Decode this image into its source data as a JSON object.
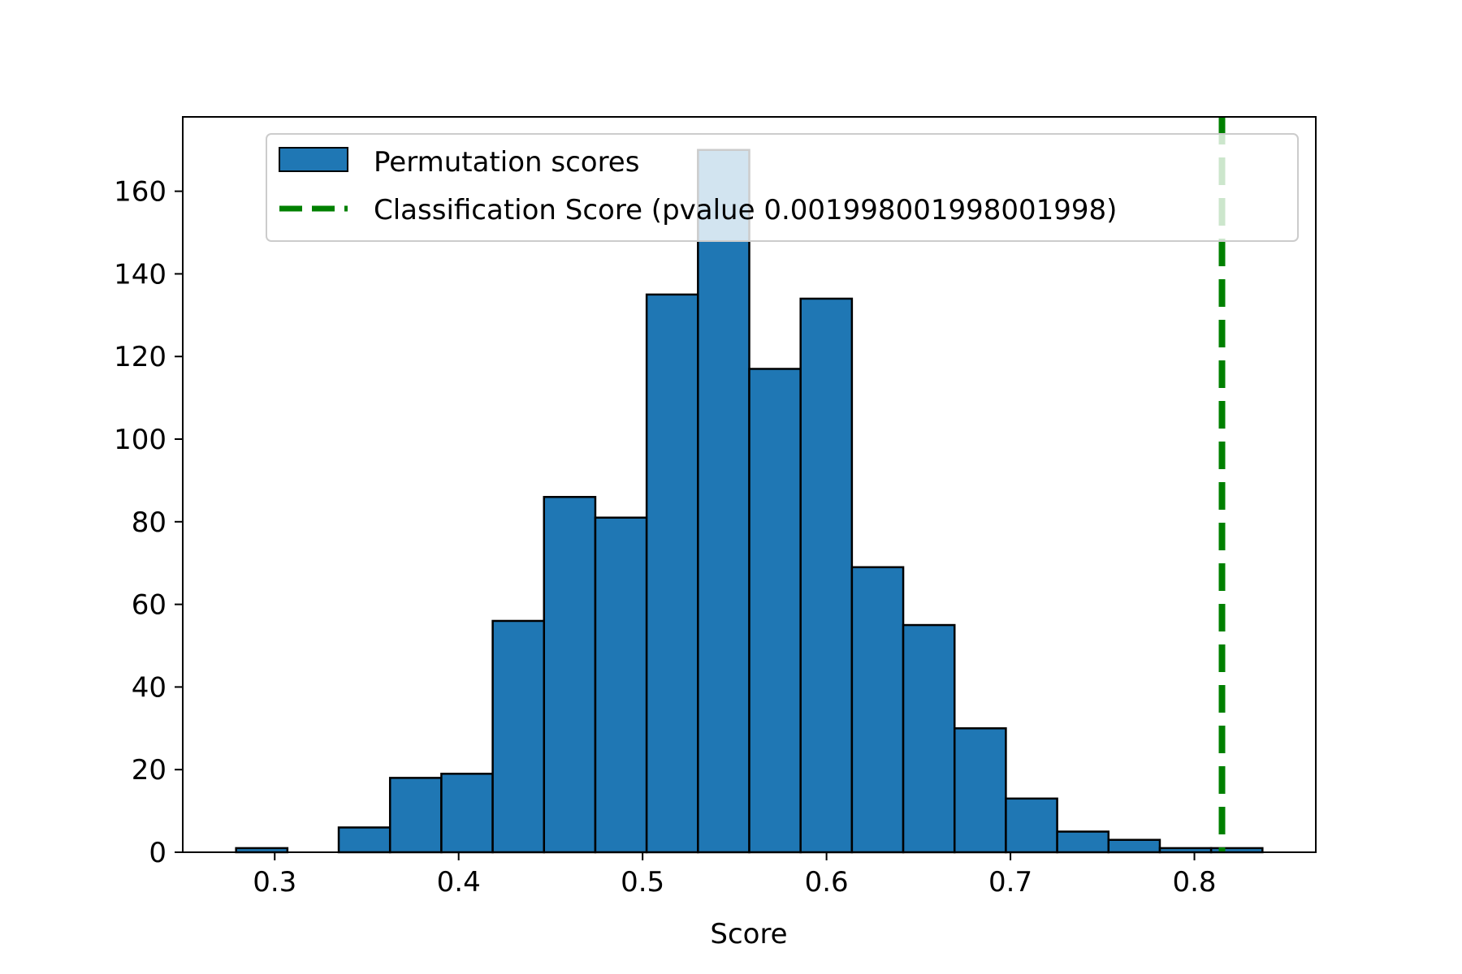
{
  "chart_data": {
    "type": "bar",
    "subtype": "histogram",
    "title": "",
    "xlabel": "Score",
    "ylabel": "",
    "xlim": [
      0.25,
      0.866
    ],
    "ylim": [
      0,
      178
    ],
    "bin_edges": [
      0.279,
      0.3069,
      0.3348,
      0.3627,
      0.3906,
      0.4185,
      0.4464,
      0.4743,
      0.5022,
      0.5301,
      0.558,
      0.5859,
      0.6138,
      0.6417,
      0.6696,
      0.6975,
      0.7254,
      0.7533,
      0.7812,
      0.8091,
      0.837
    ],
    "series": [
      {
        "name": "Permutation scores",
        "color": "#1f77b4",
        "edgecolor": "#000000",
        "values": [
          1,
          0,
          6,
          18,
          19,
          56,
          86,
          81,
          135,
          170,
          117,
          134,
          69,
          55,
          30,
          13,
          5,
          3,
          1,
          1
        ]
      }
    ],
    "vlines": [
      {
        "name": "Classification Score (pvalue 0.001998001998001998)",
        "x": 0.815,
        "color": "#008000",
        "style": "dashed"
      }
    ],
    "xticks": [
      0.3,
      0.4,
      0.5,
      0.6,
      0.7,
      0.8
    ],
    "xtick_labels": [
      "0.3",
      "0.4",
      "0.5",
      "0.6",
      "0.7",
      "0.8"
    ],
    "yticks": [
      0,
      20,
      40,
      60,
      80,
      100,
      120,
      140,
      160
    ],
    "ytick_labels": [
      "0",
      "20",
      "40",
      "60",
      "80",
      "100",
      "120",
      "140",
      "160"
    ],
    "legend": {
      "placement": "upper center",
      "entries": [
        "Permutation scores",
        "Classification Score (pvalue 0.001998001998001998)"
      ]
    },
    "grid": false
  }
}
